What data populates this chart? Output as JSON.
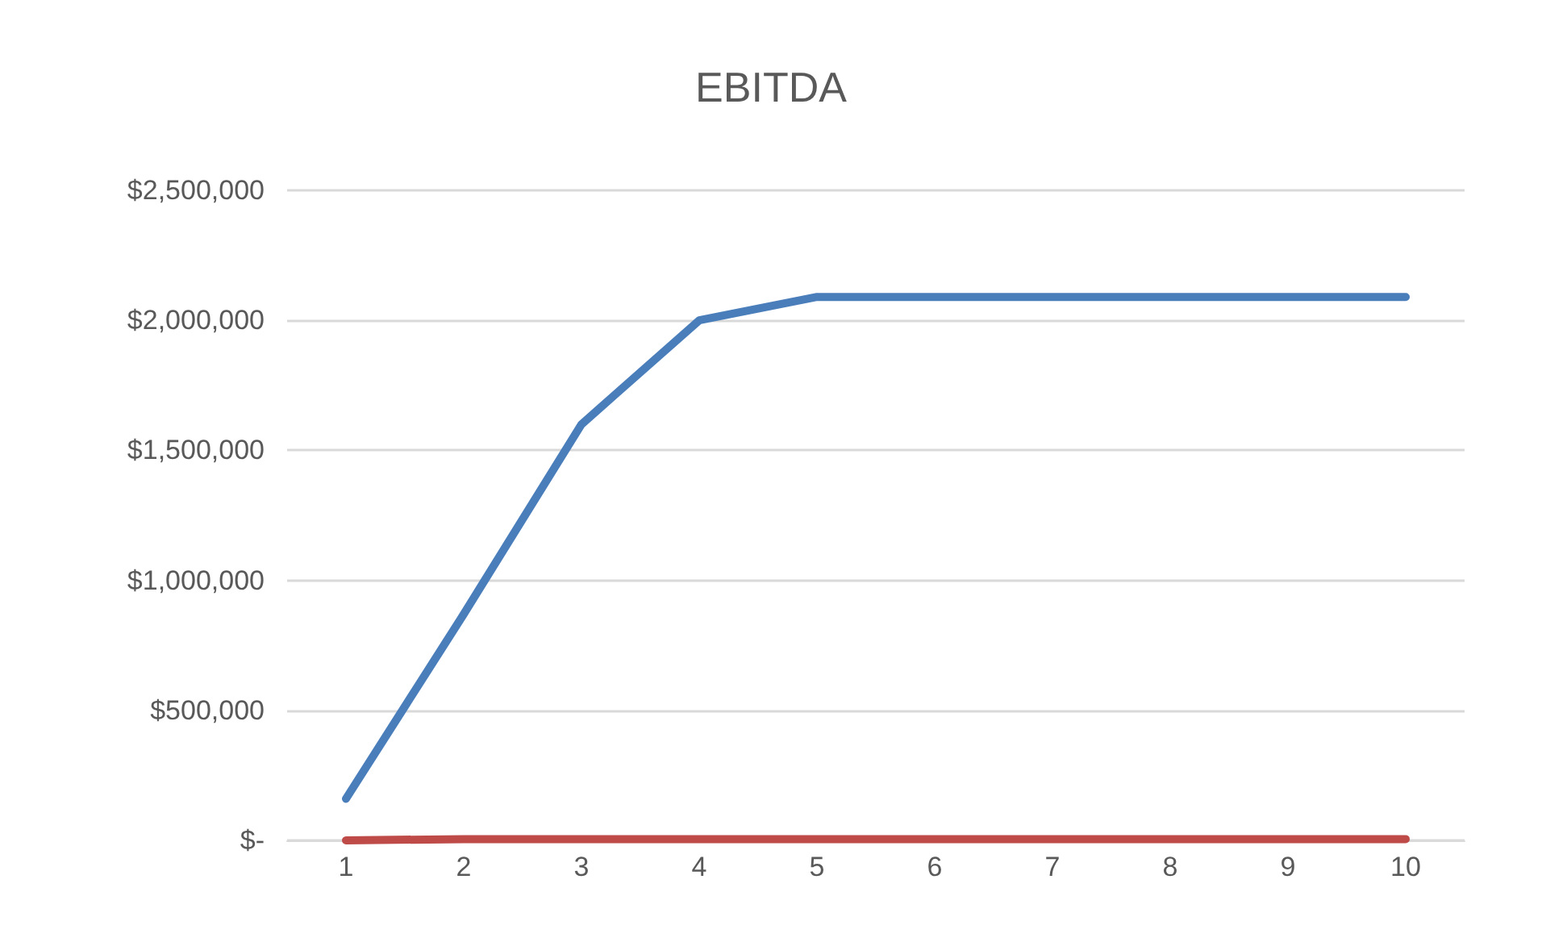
{
  "chart_data": {
    "type": "line",
    "title": "EBITDA",
    "categories": [
      "1",
      "2",
      "3",
      "4",
      "5",
      "6",
      "7",
      "8",
      "9",
      "10"
    ],
    "series": [
      {
        "color": "#4a7ebb",
        "values": [
          160000,
          870000,
          1600000,
          2000000,
          2090000,
          2090000,
          2090000,
          2090000,
          2090000,
          2090000
        ]
      },
      {
        "color": "#be4b48",
        "values": [
          0,
          5000,
          5000,
          5000,
          5000,
          5000,
          5000,
          5000,
          5000,
          5000
        ]
      }
    ],
    "ylim": [
      0,
      2500000
    ],
    "yticks": [
      {
        "value": 0,
        "label": "$-"
      },
      {
        "value": 500000,
        "label": "$500,000"
      },
      {
        "value": 1000000,
        "label": "$1,000,000"
      },
      {
        "value": 1500000,
        "label": "$1,500,000"
      },
      {
        "value": 2000000,
        "label": "$2,000,000"
      },
      {
        "value": 2500000,
        "label": "$2,500,000"
      }
    ],
    "grid": "y",
    "marker": "none",
    "line_style": "solid"
  }
}
